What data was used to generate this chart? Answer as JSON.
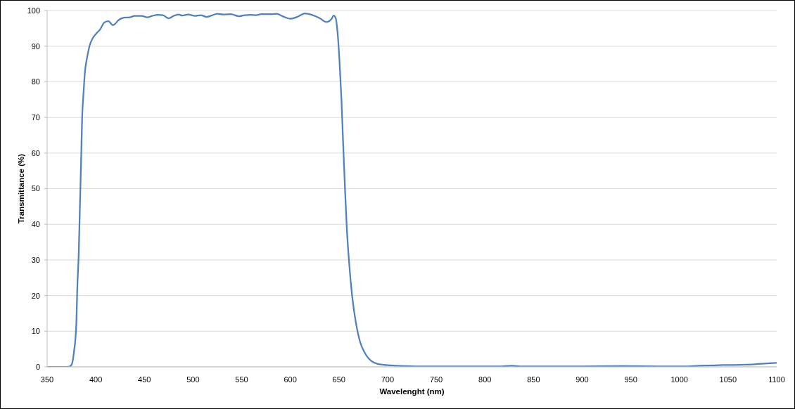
{
  "chart_data": {
    "type": "line",
    "xlabel": "Wavelenght (nm)",
    "ylabel": "Transmittance (%)",
    "x": [
      350,
      360,
      370,
      373,
      375,
      377.5,
      380,
      381,
      382.5,
      383.7,
      385,
      386,
      387.4,
      388.6,
      391,
      393.5,
      397,
      401,
      404.5,
      409,
      413,
      417.5,
      420,
      423,
      429,
      435,
      440,
      447,
      453,
      458,
      464,
      469,
      475,
      480,
      485,
      489,
      495,
      502,
      508,
      514,
      519,
      525,
      531,
      539,
      547,
      553,
      559,
      565,
      570,
      580,
      586,
      592,
      600,
      607,
      615,
      622,
      630,
      637,
      642.5,
      644.5,
      646.5,
      648.5,
      650.5,
      652.5,
      654.2,
      656.2,
      658.1,
      660.6,
      663.5,
      667.2,
      671.4,
      677,
      683,
      690,
      703,
      718,
      737,
      760,
      800,
      815,
      828,
      836,
      900,
      940,
      980,
      1005,
      1021,
      1045,
      1069,
      1081,
      1093,
      1100
    ],
    "series": [
      {
        "color": "#4f81bd",
        "values": [
          0,
          0,
          0,
          0.1,
          0.5,
          4,
          12,
          22,
          32,
          45,
          58.7,
          70,
          76.7,
          82,
          86.7,
          90,
          92.3,
          93.7,
          94.7,
          96.7,
          97,
          95.9,
          96.3,
          97.2,
          98,
          98.1,
          98.5,
          98.5,
          98.1,
          98.5,
          98.8,
          98.7,
          97.8,
          98.5,
          98.9,
          98.6,
          98.9,
          98.5,
          98.7,
          98.2,
          98.6,
          99.1,
          98.9,
          99,
          98.4,
          98.7,
          98.8,
          98.7,
          99,
          99,
          99.1,
          98.4,
          97.7,
          98.2,
          99.2,
          98.8,
          97.9,
          96.8,
          97.7,
          98.6,
          98,
          94,
          86,
          75.3,
          63.3,
          50,
          38.7,
          28.7,
          20,
          12.7,
          7.3,
          3.7,
          1.7,
          0.8,
          0.4,
          0.2,
          0.1,
          0.1,
          0.1,
          0.1,
          0.3,
          0.1,
          0.1,
          0.2,
          0.1,
          0.1,
          0.3,
          0.5,
          0.6,
          0.8,
          1,
          1.1
        ]
      }
    ],
    "xlim": [
      350,
      1100
    ],
    "ylim": [
      0,
      100
    ],
    "xticks": [
      350,
      400,
      450,
      500,
      550,
      600,
      650,
      700,
      750,
      800,
      850,
      900,
      950,
      1000,
      1050,
      1100
    ],
    "yticks": [
      0,
      10,
      20,
      30,
      40,
      50,
      60,
      70,
      80,
      90,
      100
    ],
    "grid": "y",
    "marker": "none"
  }
}
